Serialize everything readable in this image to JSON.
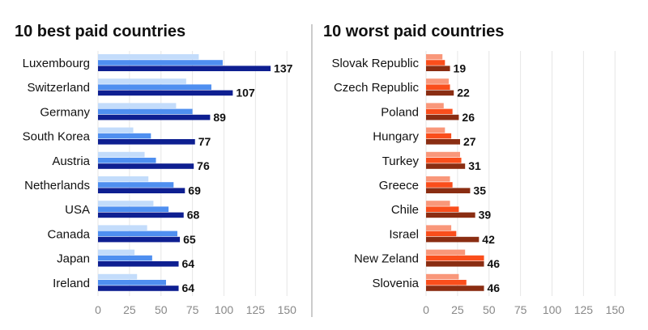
{
  "chart_data": [
    {
      "type": "bar",
      "orientation": "horizontal",
      "title": "10 best paid countries",
      "categories": [
        "Luxembourg",
        "Switzerland",
        "Germany",
        "South Korea",
        "Austria",
        "Netherlands",
        "USA",
        "Canada",
        "Japan",
        "Ireland"
      ],
      "series": [
        {
          "values": [
            80,
            70,
            62,
            28,
            37,
            40,
            44,
            39,
            29,
            31
          ],
          "color": "#c3dcfb"
        },
        {
          "values": [
            99,
            90,
            75,
            42,
            46,
            60,
            56,
            63,
            43,
            54
          ],
          "color": "#4f8ff0"
        },
        {
          "values": [
            137,
            107,
            89,
            77,
            76,
            69,
            68,
            65,
            64,
            64
          ],
          "color": "#0e1f91",
          "labeled": true
        }
      ],
      "xlim": [
        0,
        150
      ],
      "xticks": [
        "0",
        "25",
        "50",
        "75",
        "100",
        "125",
        "150"
      ],
      "grid": true
    },
    {
      "type": "bar",
      "orientation": "horizontal",
      "title": "10 worst paid countries",
      "categories": [
        "Slovak Republic",
        "Czech Republic",
        "Poland",
        "Hungary",
        "Turkey",
        "Greece",
        "Chile",
        "Israel",
        "New Zeland",
        "Slovenia"
      ],
      "series": [
        {
          "values": [
            13,
            18,
            14,
            15,
            27,
            19,
            19,
            20,
            31,
            26
          ],
          "color": "#f9977a"
        },
        {
          "values": [
            15,
            19,
            21,
            20,
            28,
            21,
            26,
            24,
            46,
            32
          ],
          "color": "#fa4e1c"
        },
        {
          "values": [
            19,
            22,
            26,
            27,
            31,
            35,
            39,
            42,
            46,
            46
          ],
          "color": "#8a2d12",
          "labeled": true
        }
      ],
      "xlim": [
        0,
        150
      ],
      "xticks": [
        "0",
        "25",
        "50",
        "75",
        "100",
        "125",
        "150"
      ],
      "grid": true
    }
  ]
}
